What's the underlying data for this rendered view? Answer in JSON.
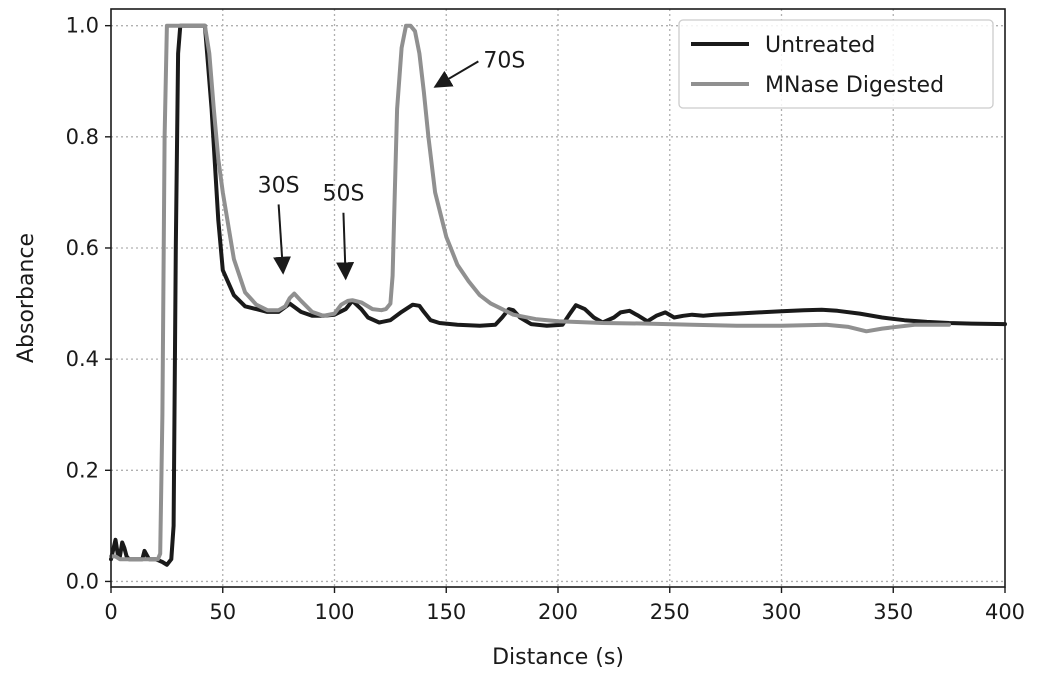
{
  "chart_data": {
    "type": "line",
    "title": "",
    "xlabel": "Distance (s)",
    "ylabel": "Absorbance",
    "xlim": [
      0,
      400
    ],
    "ylim": [
      -0.01,
      1.03
    ],
    "xticks": [
      0,
      50,
      100,
      150,
      200,
      250,
      300,
      350,
      400
    ],
    "xtick_labels": [
      "0",
      "50",
      "100",
      "150",
      "200",
      "250",
      "300",
      "350",
      "400"
    ],
    "yticks": [
      0.0,
      0.2,
      0.4,
      0.6,
      0.8,
      1.0
    ],
    "ytick_labels": [
      "0.0",
      "0.2",
      "0.4",
      "0.6",
      "0.8",
      "1.0"
    ],
    "grid": true,
    "legend_position": "top-right",
    "series": [
      {
        "name": "Untreated",
        "color": "#1a1a1a",
        "x": [
          0,
          2,
          3,
          4,
          5,
          6,
          7,
          8,
          10,
          12,
          14,
          15,
          17,
          20,
          23,
          25,
          27,
          28,
          29,
          30,
          31,
          32,
          35,
          40,
          42,
          45,
          48,
          50,
          55,
          60,
          65,
          70,
          75,
          80,
          85,
          90,
          95,
          100,
          105,
          108,
          112,
          115,
          120,
          125,
          130,
          135,
          138,
          140,
          143,
          147,
          155,
          165,
          172,
          175,
          178,
          180,
          183,
          188,
          195,
          202,
          205,
          208,
          212,
          216,
          220,
          225,
          228,
          232,
          236,
          240,
          244,
          248,
          252,
          256,
          260,
          265,
          270,
          280,
          290,
          300,
          310,
          318,
          325,
          335,
          345,
          355,
          365,
          375,
          385,
          400
        ],
        "y": [
          0.04,
          0.075,
          0.05,
          0.045,
          0.07,
          0.06,
          0.045,
          0.04,
          0.04,
          0.04,
          0.04,
          0.055,
          0.04,
          0.04,
          0.035,
          0.03,
          0.04,
          0.1,
          0.6,
          0.95,
          1.0,
          1.0,
          1.0,
          1.0,
          1.0,
          0.85,
          0.65,
          0.56,
          0.515,
          0.495,
          0.49,
          0.485,
          0.485,
          0.5,
          0.485,
          0.478,
          0.478,
          0.48,
          0.49,
          0.505,
          0.49,
          0.475,
          0.466,
          0.47,
          0.485,
          0.498,
          0.496,
          0.485,
          0.47,
          0.465,
          0.462,
          0.46,
          0.462,
          0.475,
          0.49,
          0.488,
          0.475,
          0.463,
          0.46,
          0.462,
          0.48,
          0.497,
          0.49,
          0.475,
          0.466,
          0.475,
          0.484,
          0.487,
          0.478,
          0.468,
          0.478,
          0.484,
          0.475,
          0.478,
          0.48,
          0.478,
          0.48,
          0.482,
          0.484,
          0.486,
          0.488,
          0.489,
          0.487,
          0.482,
          0.475,
          0.47,
          0.467,
          0.465,
          0.464,
          0.463
        ]
      },
      {
        "name": "MNase Digested",
        "color": "#909090",
        "x": [
          0,
          2,
          4,
          6,
          8,
          10,
          12,
          15,
          18,
          20,
          21,
          22,
          23,
          24,
          25,
          28,
          32,
          36,
          40,
          42,
          44,
          46,
          48,
          50,
          55,
          60,
          65,
          70,
          75,
          78,
          80,
          82,
          85,
          90,
          95,
          100,
          103,
          106,
          108,
          112,
          117,
          121,
          123,
          125,
          126,
          127,
          128,
          130,
          132,
          134,
          136,
          138,
          140,
          142,
          145,
          150,
          155,
          160,
          165,
          170,
          175,
          180,
          190,
          200,
          220,
          240,
          260,
          280,
          300,
          320,
          330,
          338,
          345,
          360,
          375
        ],
        "y": [
          0.045,
          0.045,
          0.04,
          0.04,
          0.04,
          0.04,
          0.04,
          0.04,
          0.04,
          0.04,
          0.04,
          0.05,
          0.3,
          0.8,
          1.0,
          1.0,
          1.0,
          1.0,
          1.0,
          1.0,
          0.95,
          0.85,
          0.76,
          0.7,
          0.58,
          0.52,
          0.498,
          0.488,
          0.488,
          0.495,
          0.51,
          0.518,
          0.505,
          0.485,
          0.478,
          0.482,
          0.498,
          0.505,
          0.506,
          0.502,
          0.49,
          0.488,
          0.49,
          0.5,
          0.55,
          0.7,
          0.85,
          0.96,
          1.0,
          1.0,
          0.99,
          0.95,
          0.88,
          0.8,
          0.7,
          0.62,
          0.57,
          0.54,
          0.515,
          0.5,
          0.49,
          0.48,
          0.472,
          0.468,
          0.465,
          0.464,
          0.462,
          0.46,
          0.46,
          0.462,
          0.458,
          0.45,
          0.455,
          0.462,
          0.462
        ]
      }
    ],
    "annotations": [
      {
        "text": "30S",
        "xy": [
          77,
          0.555
        ],
        "xytext": [
          75,
          0.7
        ]
      },
      {
        "text": "50S",
        "xy": [
          105,
          0.545
        ],
        "xytext": [
          104,
          0.685
        ]
      },
      {
        "text": "70S",
        "xy": [
          145,
          0.89
        ],
        "xytext": [
          176,
          0.925
        ]
      }
    ]
  }
}
